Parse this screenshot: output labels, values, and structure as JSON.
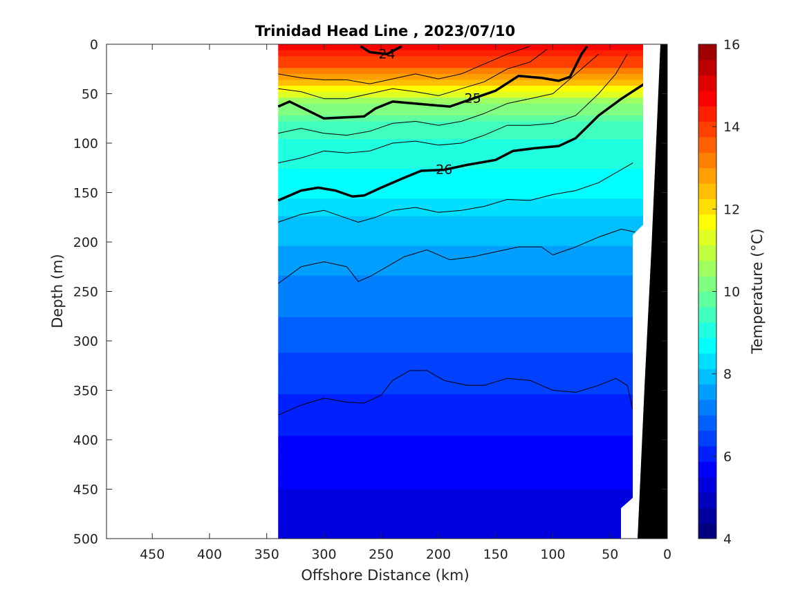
{
  "chart_data": {
    "type": "contour",
    "title": "Trinidad Head Line , 2023/07/10",
    "xlabel": "Offshore Distance (km)",
    "ylabel": "Depth (m)",
    "xlim": [
      490,
      0
    ],
    "ylim": [
      0,
      500
    ],
    "x_reversed": true,
    "y_reversed": true,
    "xticks": [
      450,
      400,
      350,
      300,
      250,
      200,
      150,
      100,
      50,
      0
    ],
    "yticks": [
      0,
      50,
      100,
      150,
      200,
      250,
      300,
      350,
      400,
      450,
      500
    ],
    "data_extent_km": [
      340,
      20
    ],
    "colorbar": {
      "label": "Temperature (°C)",
      "ticks": [
        4,
        6,
        8,
        10,
        12,
        14,
        16
      ],
      "range": [
        4,
        16
      ],
      "levels": 24,
      "colors": [
        "#00007f",
        "#00009f",
        "#0000bf",
        "#0000df",
        "#0000ff",
        "#0020ff",
        "#0040ff",
        "#0060ff",
        "#0080ff",
        "#009fff",
        "#00bfff",
        "#00dfff",
        "#00ffff",
        "#20ffdf",
        "#40ffbf",
        "#60ff9f",
        "#80ff80",
        "#9fff60",
        "#bfff40",
        "#dfff20",
        "#ffff00",
        "#ffdf00",
        "#ffbf00",
        "#ff9f00",
        "#ff8000",
        "#ff6000",
        "#ff4000",
        "#ff2000",
        "#ff0000",
        "#df0000",
        "#bf0000",
        "#9f0000"
      ]
    },
    "temperature_bands": [
      {
        "depth": 0,
        "temp": 14.5
      },
      {
        "depth": 15,
        "temp": 14.0
      },
      {
        "depth": 35,
        "temp": 12.5
      },
      {
        "depth": 55,
        "temp": 10.5
      },
      {
        "depth": 80,
        "temp": 9.5
      },
      {
        "depth": 110,
        "temp": 9.0
      },
      {
        "depth": 150,
        "temp": 8.5
      },
      {
        "depth": 180,
        "temp": 8.0
      },
      {
        "depth": 230,
        "temp": 7.4
      },
      {
        "depth": 280,
        "temp": 6.9
      },
      {
        "depth": 330,
        "temp": 6.4
      },
      {
        "depth": 380,
        "temp": 6.0
      },
      {
        "depth": 430,
        "temp": 5.6
      },
      {
        "depth": 500,
        "temp": 5.2
      }
    ],
    "density_contours": [
      {
        "label": "24",
        "bold": true,
        "points": [
          [
            268,
            2
          ],
          [
            260,
            8
          ],
          [
            245,
            10
          ],
          [
            232,
            2
          ]
        ]
      },
      {
        "label": "25",
        "bold": true,
        "points": [
          [
            340,
            63
          ],
          [
            330,
            58
          ],
          [
            300,
            75
          ],
          [
            265,
            73
          ],
          [
            255,
            65
          ],
          [
            240,
            58
          ],
          [
            200,
            62
          ],
          [
            190,
            63
          ],
          [
            170,
            55
          ],
          [
            150,
            47
          ],
          [
            130,
            32
          ],
          [
            110,
            34
          ],
          [
            95,
            37
          ],
          [
            85,
            33
          ],
          [
            75,
            10
          ],
          [
            70,
            2
          ]
        ]
      },
      {
        "label": "26",
        "bold": true,
        "points": [
          [
            340,
            158
          ],
          [
            320,
            148
          ],
          [
            305,
            145
          ],
          [
            290,
            148
          ],
          [
            275,
            154
          ],
          [
            265,
            153
          ],
          [
            250,
            145
          ],
          [
            230,
            135
          ],
          [
            215,
            128
          ],
          [
            195,
            127
          ],
          [
            175,
            122
          ],
          [
            150,
            117
          ],
          [
            135,
            108
          ],
          [
            115,
            105
          ],
          [
            95,
            103
          ],
          [
            80,
            95
          ],
          [
            60,
            72
          ],
          [
            40,
            55
          ],
          [
            20,
            40
          ]
        ]
      },
      {
        "label": "",
        "bold": false,
        "points": [
          [
            340,
            180
          ],
          [
            320,
            172
          ],
          [
            300,
            168
          ],
          [
            280,
            176
          ],
          [
            270,
            180
          ],
          [
            255,
            175
          ],
          [
            240,
            168
          ],
          [
            220,
            165
          ],
          [
            200,
            170
          ],
          [
            180,
            168
          ],
          [
            160,
            164
          ],
          [
            140,
            157
          ],
          [
            120,
            158
          ],
          [
            100,
            152
          ],
          [
            80,
            148
          ],
          [
            60,
            140
          ],
          [
            30,
            120
          ]
        ]
      },
      {
        "label": "",
        "bold": false,
        "points": [
          [
            340,
            242
          ],
          [
            320,
            225
          ],
          [
            300,
            220
          ],
          [
            280,
            225
          ],
          [
            270,
            240
          ],
          [
            260,
            235
          ],
          [
            245,
            225
          ],
          [
            230,
            215
          ],
          [
            210,
            208
          ],
          [
            190,
            218
          ],
          [
            170,
            215
          ],
          [
            150,
            210
          ],
          [
            130,
            205
          ],
          [
            110,
            205
          ],
          [
            100,
            213
          ],
          [
            80,
            205
          ],
          [
            60,
            195
          ],
          [
            40,
            187
          ],
          [
            28,
            190
          ]
        ]
      },
      {
        "label": "",
        "bold": false,
        "points": [
          [
            340,
            375
          ],
          [
            320,
            365
          ],
          [
            300,
            358
          ],
          [
            280,
            362
          ],
          [
            265,
            363
          ],
          [
            250,
            355
          ],
          [
            240,
            340
          ],
          [
            225,
            330
          ],
          [
            210,
            330
          ],
          [
            195,
            340
          ],
          [
            175,
            345
          ],
          [
            160,
            345
          ],
          [
            140,
            338
          ],
          [
            120,
            340
          ],
          [
            100,
            350
          ],
          [
            80,
            352
          ],
          [
            60,
            345
          ],
          [
            45,
            338
          ],
          [
            35,
            345
          ],
          [
            30,
            370
          ]
        ]
      },
      {
        "label": "",
        "bold": false,
        "points": [
          [
            340,
            30
          ],
          [
            320,
            34
          ],
          [
            300,
            36
          ],
          [
            280,
            36
          ],
          [
            260,
            40
          ],
          [
            240,
            35
          ],
          [
            220,
            30
          ],
          [
            200,
            35
          ],
          [
            180,
            30
          ],
          [
            160,
            20
          ],
          [
            140,
            10
          ],
          [
            120,
            2
          ]
        ]
      },
      {
        "label": "",
        "bold": false,
        "points": [
          [
            340,
            45
          ],
          [
            320,
            48
          ],
          [
            300,
            55
          ],
          [
            280,
            55
          ],
          [
            260,
            50
          ],
          [
            240,
            45
          ],
          [
            220,
            48
          ],
          [
            200,
            52
          ],
          [
            180,
            45
          ],
          [
            160,
            38
          ],
          [
            140,
            25
          ],
          [
            120,
            18
          ],
          [
            105,
            5
          ]
        ]
      },
      {
        "label": "",
        "bold": false,
        "points": [
          [
            340,
            90
          ],
          [
            320,
            85
          ],
          [
            300,
            90
          ],
          [
            280,
            92
          ],
          [
            260,
            88
          ],
          [
            240,
            80
          ],
          [
            220,
            78
          ],
          [
            200,
            82
          ],
          [
            180,
            78
          ],
          [
            160,
            70
          ],
          [
            140,
            60
          ],
          [
            120,
            55
          ],
          [
            100,
            50
          ],
          [
            80,
            30
          ],
          [
            60,
            10
          ]
        ]
      },
      {
        "label": "",
        "bold": false,
        "points": [
          [
            340,
            120
          ],
          [
            320,
            115
          ],
          [
            300,
            108
          ],
          [
            280,
            110
          ],
          [
            260,
            108
          ],
          [
            240,
            100
          ],
          [
            220,
            98
          ],
          [
            200,
            102
          ],
          [
            180,
            100
          ],
          [
            160,
            92
          ],
          [
            140,
            82
          ],
          [
            120,
            82
          ],
          [
            100,
            80
          ],
          [
            80,
            72
          ],
          [
            60,
            50
          ],
          [
            45,
            30
          ],
          [
            35,
            10
          ]
        ]
      }
    ]
  }
}
